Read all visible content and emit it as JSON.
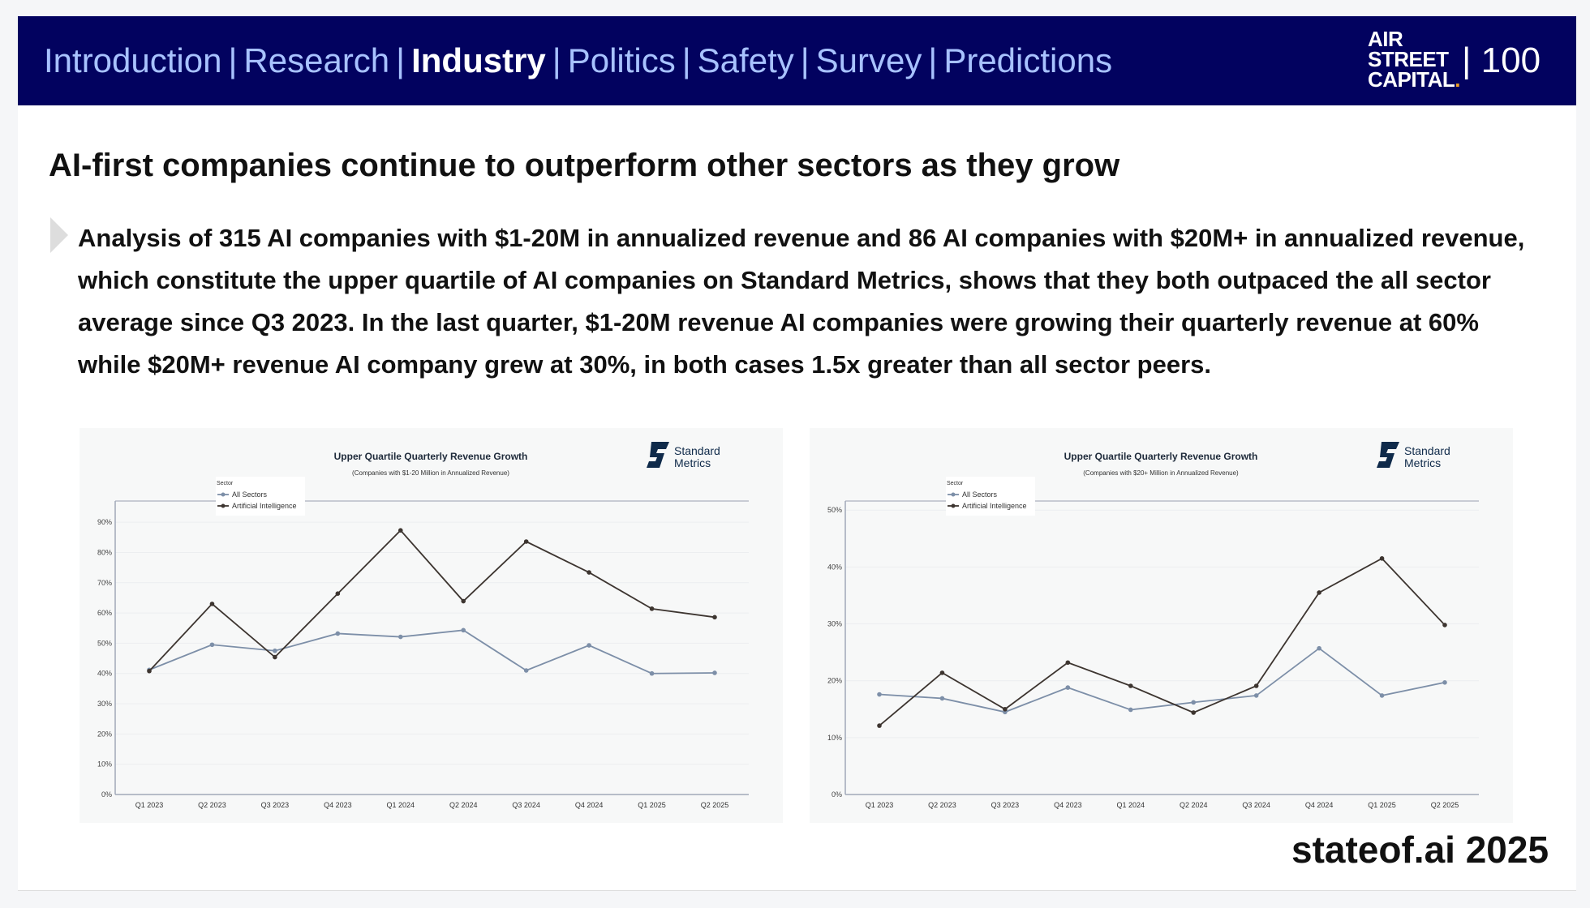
{
  "header": {
    "nav": [
      {
        "label": "Introduction",
        "active": false
      },
      {
        "label": "Research",
        "active": false
      },
      {
        "label": "Industry",
        "active": true
      },
      {
        "label": "Politics",
        "active": false
      },
      {
        "label": "Safety",
        "active": false
      },
      {
        "label": "Survey",
        "active": false
      },
      {
        "label": "Predictions",
        "active": false
      }
    ],
    "separator": "|",
    "logo": [
      "AIR",
      "STREET",
      "CAPITAL",
      "."
    ],
    "page_number": "| 100"
  },
  "title": "AI-first companies continue to outperform other sectors as they grow",
  "body": "Analysis of 315 AI companies with $1-20M in annualized revenue and 86 AI companies with $20M+ in annualized revenue, which constitute the upper quartile of AI companies on Standard Metrics, shows that they both outpaced the all sector average since Q3 2023. In the last quarter, $1-20M revenue AI companies were growing their quarterly revenue at 60% while $20M+ revenue AI company grew at 30%, in both cases 1.5x greater than all sector peers.",
  "footer": "stateof.ai 2025",
  "colors": {
    "header_bg": "#02025f",
    "nav": "#a8c2ff",
    "all_sectors": "#7d8fa8",
    "ai": "#3d3530",
    "logo": "#0f2a4a"
  },
  "chart_data": [
    {
      "type": "line",
      "title": "Upper Quartile Quarterly Revenue Growth",
      "subtitle": "(Companies with $1-20 Million in Annualized Revenue)",
      "brand": [
        "Standard",
        "Metrics"
      ],
      "legend_title": "Sector",
      "legend_position": "top-left",
      "categories": [
        "Q1 2023",
        "Q2 2023",
        "Q3 2023",
        "Q4 2023",
        "Q1 2024",
        "Q2 2024",
        "Q3 2024",
        "Q4 2024",
        "Q1 2025",
        "Q2 2025"
      ],
      "yticks": [
        "0%",
        "10%",
        "20%",
        "30%",
        "40%",
        "50%",
        "60%",
        "70%",
        "80%",
        "90%"
      ],
      "ytick_values": [
        0,
        10,
        20,
        30,
        40,
        50,
        60,
        70,
        80,
        90
      ],
      "ylim": [
        0,
        97
      ],
      "grid": true,
      "series": [
        {
          "name": "All Sectors",
          "values": [
            41.2,
            49.5,
            47.5,
            53.2,
            52.1,
            54.3,
            41.0,
            49.3,
            40.0,
            40.2
          ]
        },
        {
          "name": "Artificial Intelligence",
          "values": [
            40.8,
            63.0,
            45.4,
            66.4,
            87.3,
            63.9,
            83.6,
            73.4,
            61.4,
            58.6
          ]
        }
      ]
    },
    {
      "type": "line",
      "title": "Upper Quartile Quarterly Revenue Growth",
      "subtitle": "(Companies with $20+ Million in Annualized Revenue)",
      "brand": [
        "Standard",
        "Metrics"
      ],
      "legend_title": "Sector",
      "legend_position": "top-left",
      "categories": [
        "Q1 2023",
        "Q2 2023",
        "Q3 2023",
        "Q4 2023",
        "Q1 2024",
        "Q2 2024",
        "Q3 2024",
        "Q4 2024",
        "Q1 2025",
        "Q2 2025"
      ],
      "yticks": [
        "0%",
        "10%",
        "20%",
        "30%",
        "40%",
        "50%"
      ],
      "ytick_values": [
        0,
        10,
        20,
        30,
        40,
        50
      ],
      "ylim": [
        0,
        51.6
      ],
      "grid": true,
      "series": [
        {
          "name": "All Sectors",
          "values": [
            17.6,
            16.9,
            14.5,
            18.8,
            14.9,
            16.2,
            17.4,
            25.7,
            17.4,
            19.7
          ]
        },
        {
          "name": "Artificial Intelligence",
          "values": [
            12.1,
            21.4,
            15.0,
            23.2,
            19.1,
            14.4,
            19.1,
            35.5,
            41.5,
            29.8
          ]
        }
      ]
    }
  ]
}
